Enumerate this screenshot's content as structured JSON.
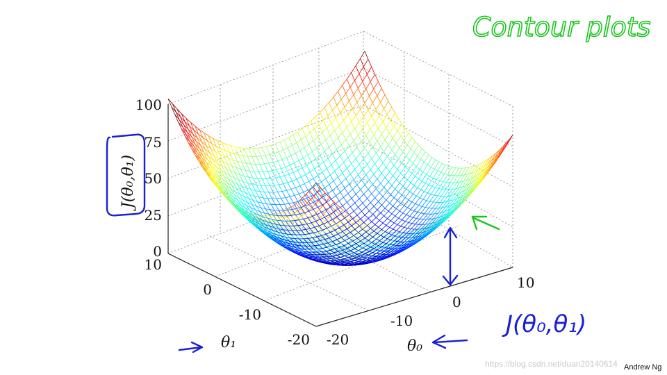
{
  "chart_data": {
    "type": "surface",
    "title": "",
    "z_label": "J(θ₀,θ₁)",
    "x_label": "θ₀",
    "y_label": "θ₁",
    "z_ticks": [
      "0",
      "25",
      "50",
      "75",
      "100"
    ],
    "x_ticks": [
      "-20",
      "-10",
      "0",
      "10"
    ],
    "y_ticks": [
      "-20",
      "-10",
      "0",
      "10"
    ],
    "x_range": [
      -20,
      10
    ],
    "y_range": [
      -20,
      10
    ],
    "z_range": [
      0,
      100
    ],
    "grid": true,
    "colormap": "jet"
  },
  "annotations": {
    "heading": "Contour plots",
    "formula": "J(θ₀,θ₁)",
    "author": "Andrew Ng",
    "watermark": "https://blog.csdn.net/duan20140614"
  },
  "colors": {
    "heading_ink": "#19c51e",
    "annotation_ink": "#1a1fd4"
  }
}
